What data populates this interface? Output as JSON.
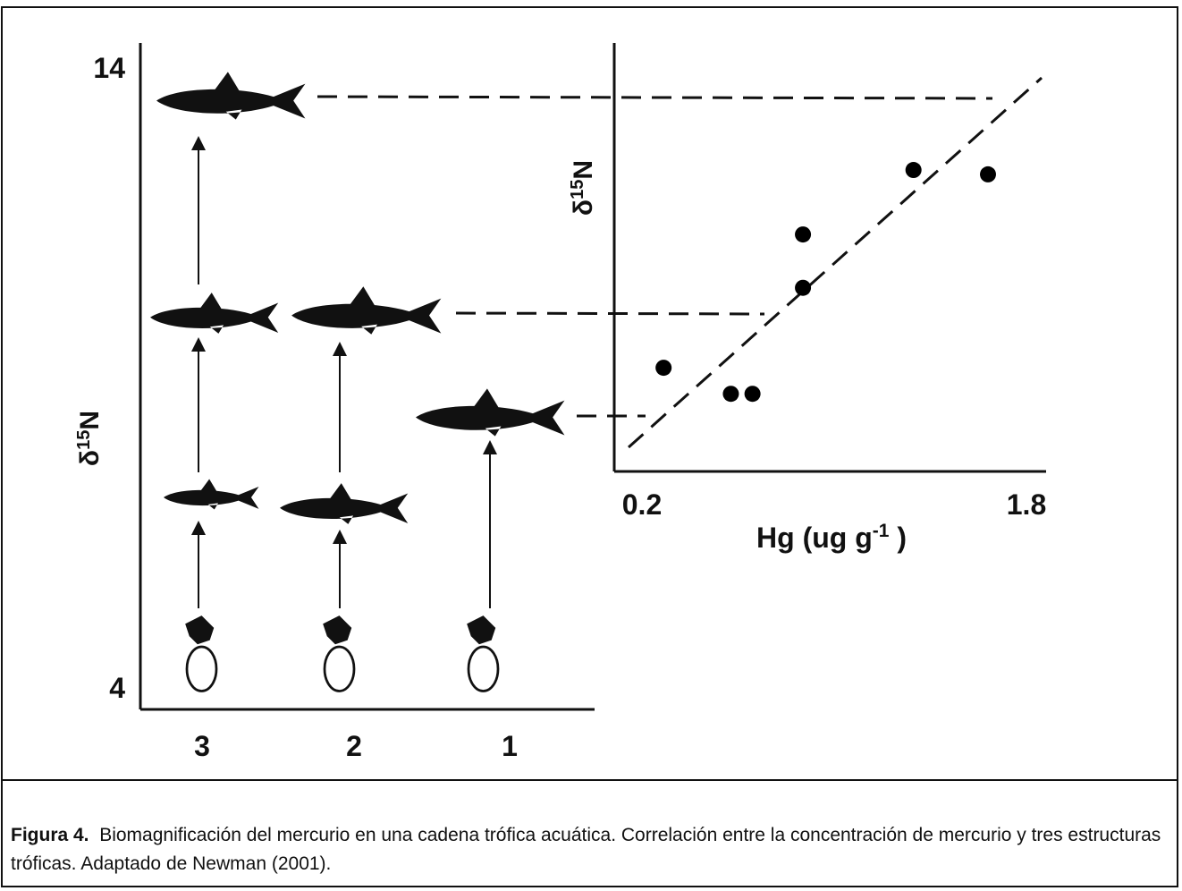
{
  "chart_data": {
    "type": "scatter",
    "y_label": {
      "base": "δ",
      "sup": "15",
      "end": "N"
    },
    "x_label": {
      "base": "Hg (ug g",
      "sup": "-1",
      "end": " )"
    },
    "categories": [
      "3",
      "2",
      "1"
    ],
    "x": [
      0.29,
      0.57,
      0.66,
      0.87,
      0.87,
      1.33,
      1.64
    ],
    "values": [
      9.15,
      8.73,
      8.73,
      11.3,
      10.44,
      12.34,
      12.27
    ],
    "color": "#000000",
    "xlim": [
      0.2,
      1.8
    ],
    "xticks": [
      0.2,
      1.8
    ],
    "ylim": [
      4,
      14
    ],
    "yticks": [
      14,
      4
    ]
  },
  "caption": {
    "label": "Figura 4.",
    "text": "Biomagnificación del mercurio en una cadena trófica acuática. Correlación entre la concentración de mercurio y tres estructuras tróficas. Adaptado de Newman (2001)."
  }
}
